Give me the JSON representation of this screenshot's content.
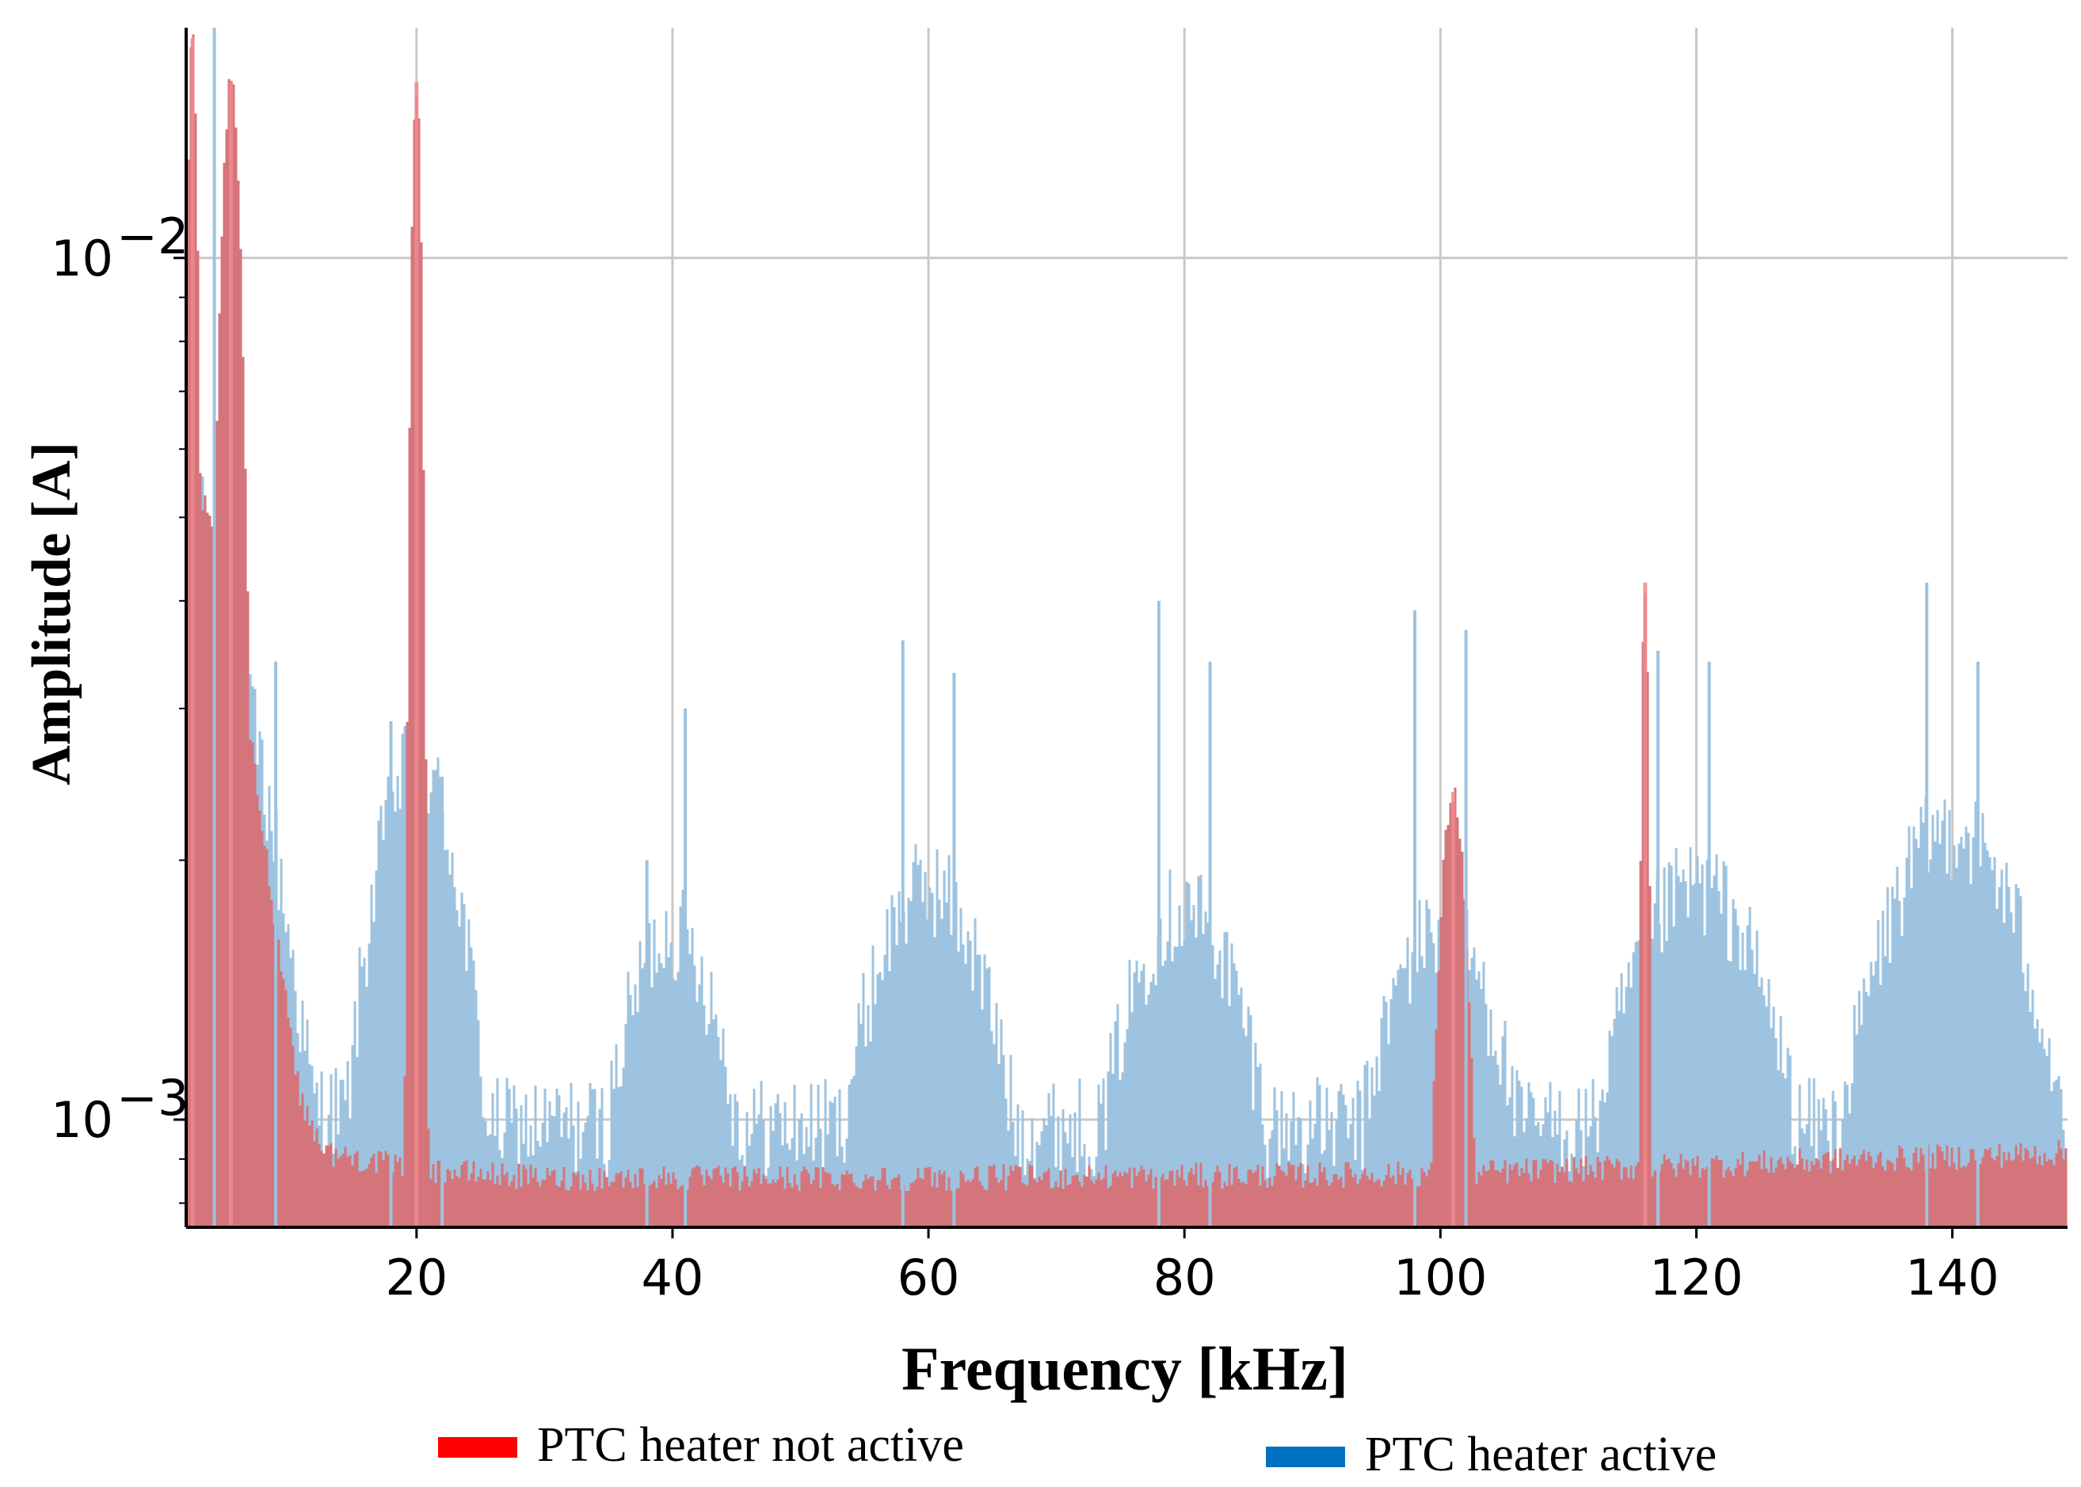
{
  "chart_data": {
    "type": "bar",
    "title": "",
    "xlabel": "Frequency [kHz]",
    "ylabel": "Amplitude [A]",
    "xscale": "linear",
    "yscale": "log",
    "xlim": [
      2,
      149
    ],
    "ylim": [
      0.00075,
      0.0185
    ],
    "grid": true,
    "x_ticks": [
      20,
      40,
      60,
      80,
      100,
      120,
      140
    ],
    "x_tick_labels": [
      "20",
      "40",
      "60",
      "80",
      "100",
      "120",
      "140"
    ],
    "y_ticks": [
      {
        "value": 0.01,
        "base": "10",
        "exponent": "−2"
      },
      {
        "value": 0.001,
        "base": "10",
        "exponent": "−3"
      }
    ],
    "legend_position": "bottom",
    "series": [
      {
        "name": "PTC heater not active",
        "color": "#ff0000",
        "fill_color": "#d4757b",
        "baseline_points": [
          [
            2,
            0.0065
          ],
          [
            3,
            0.0055
          ],
          [
            5,
            0.0042
          ],
          [
            7,
            0.0028
          ],
          [
            9,
            0.0017
          ],
          [
            11,
            0.00105
          ],
          [
            13,
            0.00092
          ],
          [
            20,
            0.00088
          ],
          [
            30,
            0.00086
          ],
          [
            60,
            0.00086
          ],
          [
            100,
            0.00087
          ],
          [
            149,
            0.00092
          ]
        ],
        "peaks": [
          {
            "x": 2.5,
            "y": 0.018,
            "width": 0.4
          },
          {
            "x": 5.5,
            "y": 0.016,
            "width": 0.8
          },
          {
            "x": 20,
            "y": 0.016,
            "width": 0.4
          },
          {
            "x": 101,
            "y": 0.0024,
            "width": 1.2
          },
          {
            "x": 116,
            "y": 0.0042,
            "width": 0.3
          }
        ]
      },
      {
        "name": "PTC heater active",
        "color": "#0070c0",
        "fill_color": "#9dc3e0",
        "baseline_points": [
          [
            2,
            0.0055
          ],
          [
            6,
            0.0035
          ],
          [
            9,
            0.002
          ],
          [
            12,
            0.001
          ],
          [
            20,
            0.00095
          ],
          [
            149,
            0.00095
          ]
        ],
        "humps": [
          {
            "center": 20,
            "peak": 0.0025,
            "width": 4
          },
          {
            "center": 40,
            "peak": 0.0016,
            "width": 5
          },
          {
            "center": 60,
            "peak": 0.0018,
            "width": 6
          },
          {
            "center": 80,
            "peak": 0.0017,
            "width": 6
          },
          {
            "center": 100,
            "peak": 0.0016,
            "width": 6
          },
          {
            "center": 120,
            "peak": 0.0018,
            "width": 7
          },
          {
            "center": 140,
            "peak": 0.0021,
            "width": 7
          }
        ],
        "spikes": [
          {
            "x": 4.2,
            "y": 0.0185
          },
          {
            "x": 9,
            "y": 0.0034
          },
          {
            "x": 18,
            "y": 0.0029
          },
          {
            "x": 22,
            "y": 0.0025
          },
          {
            "x": 38,
            "y": 0.002
          },
          {
            "x": 41,
            "y": 0.003
          },
          {
            "x": 58,
            "y": 0.0036
          },
          {
            "x": 62,
            "y": 0.0033
          },
          {
            "x": 78,
            "y": 0.004
          },
          {
            "x": 82,
            "y": 0.0034
          },
          {
            "x": 98,
            "y": 0.0039
          },
          {
            "x": 102,
            "y": 0.0037
          },
          {
            "x": 117,
            "y": 0.0035
          },
          {
            "x": 121,
            "y": 0.0034
          },
          {
            "x": 138,
            "y": 0.0042
          },
          {
            "x": 142,
            "y": 0.0034
          }
        ]
      }
    ]
  },
  "legend": {
    "items": [
      {
        "label": "PTC heater not active",
        "color": "#ff0000"
      },
      {
        "label": "PTC heater active",
        "color": "#0070c0"
      }
    ]
  }
}
